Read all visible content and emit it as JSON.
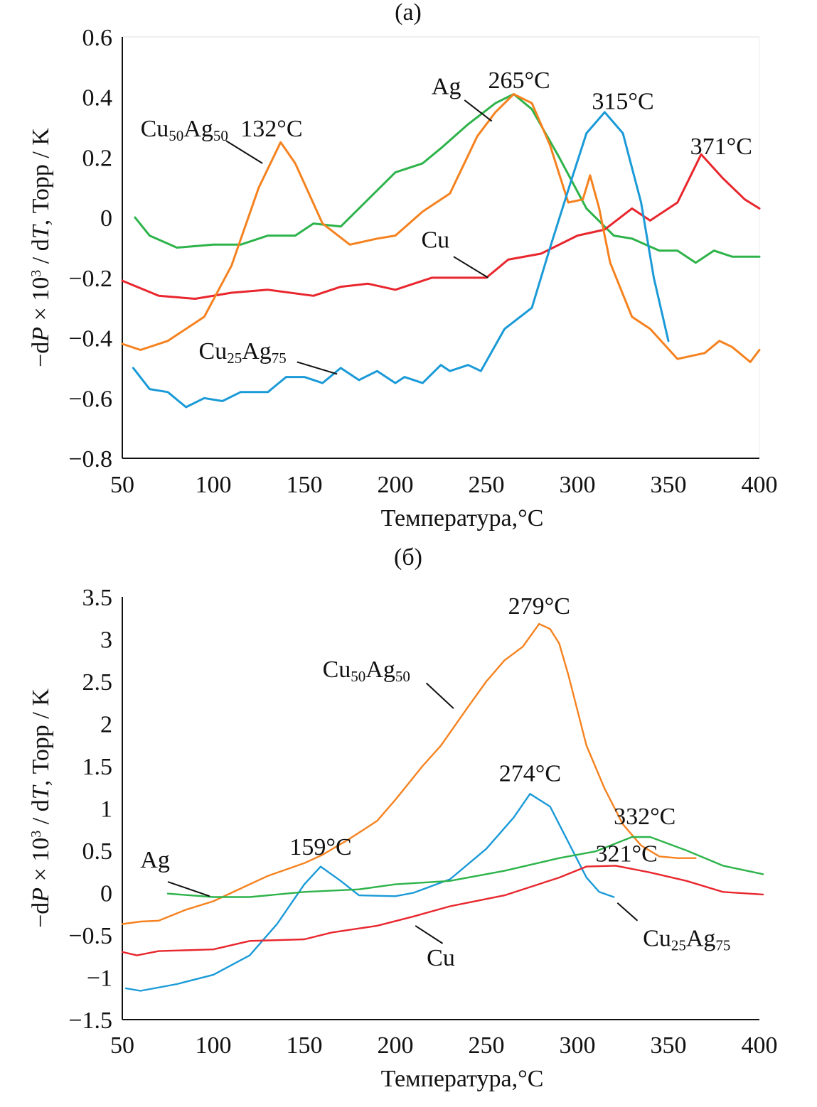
{
  "chart_data": [
    {
      "type": "line",
      "title": "(a)",
      "xlabel": "Температура,°C",
      "ylabel_parts": [
        "−d",
        "P",
        " × 10",
        "3",
        " / d",
        "T",
        ", Торр / K"
      ],
      "xlim": [
        50,
        400
      ],
      "ylim": [
        -0.8,
        0.6
      ],
      "xticks": [
        50,
        100,
        150,
        200,
        250,
        300,
        350,
        400
      ],
      "yticks": [
        0.6,
        0.4,
        0.2,
        0,
        -0.2,
        -0.4,
        -0.6,
        -0.8
      ],
      "ytick_labels": [
        "0.6",
        "0.4",
        "0.2",
        "0",
        "−0.2",
        "−0.4",
        "−0.6",
        "−0.8"
      ],
      "grid": false,
      "series": [
        {
          "name": "Ag",
          "color": "#2db34a",
          "x": [
            57,
            65,
            80,
            100,
            115,
            130,
            145,
            155,
            170,
            185,
            200,
            215,
            225,
            240,
            255,
            265,
            275,
            290,
            305,
            320,
            330,
            345,
            355,
            365,
            375,
            385,
            400
          ],
          "y": [
            0,
            -0.06,
            -0.1,
            -0.09,
            -0.09,
            -0.06,
            -0.06,
            -0.02,
            -0.03,
            0.06,
            0.15,
            0.18,
            0.23,
            0.31,
            0.38,
            0.41,
            0.36,
            0.2,
            0.03,
            -0.06,
            -0.07,
            -0.11,
            -0.11,
            -0.15,
            -0.11,
            -0.13,
            -0.13
          ]
        },
        {
          "name": "Cu",
          "color": "#e8262d",
          "x": [
            50,
            70,
            90,
            110,
            130,
            155,
            170,
            185,
            200,
            220,
            250,
            262,
            280,
            300,
            315,
            330,
            340,
            355,
            368,
            380,
            392,
            400
          ],
          "y": [
            -0.21,
            -0.26,
            -0.27,
            -0.25,
            -0.24,
            -0.26,
            -0.23,
            -0.22,
            -0.24,
            -0.2,
            -0.2,
            -0.14,
            -0.12,
            -0.06,
            -0.04,
            0.03,
            -0.01,
            0.05,
            0.21,
            0.13,
            0.06,
            0.03
          ]
        },
        {
          "name": "Cu50Ag50",
          "color": "#f5821f",
          "x": [
            50,
            60,
            75,
            95,
            110,
            125,
            137,
            145,
            160,
            175,
            190,
            200,
            215,
            230,
            245,
            255,
            265,
            275,
            285,
            295,
            303,
            307,
            312,
            318,
            330,
            340,
            355,
            370,
            378,
            385,
            395,
            400
          ],
          "y": [
            -0.42,
            -0.44,
            -0.41,
            -0.33,
            -0.16,
            0.1,
            0.25,
            0.18,
            -0.02,
            -0.09,
            -0.07,
            -0.06,
            0.02,
            0.08,
            0.27,
            0.35,
            0.41,
            0.38,
            0.24,
            0.05,
            0.06,
            0.14,
            0.03,
            -0.15,
            -0.33,
            -0.37,
            -0.47,
            -0.45,
            -0.41,
            -0.43,
            -0.48,
            -0.44
          ]
        },
        {
          "name": "Cu25Ag75",
          "color": "#1a9ad7",
          "x": [
            56,
            65,
            75,
            85,
            95,
            105,
            115,
            130,
            140,
            150,
            160,
            170,
            180,
            190,
            200,
            205,
            215,
            225,
            230,
            240,
            247,
            260,
            275,
            285,
            297,
            305,
            315,
            325,
            335,
            342,
            350
          ],
          "y": [
            -0.5,
            -0.57,
            -0.58,
            -0.63,
            -0.6,
            -0.61,
            -0.58,
            -0.58,
            -0.53,
            -0.53,
            -0.55,
            -0.5,
            -0.54,
            -0.51,
            -0.55,
            -0.53,
            -0.55,
            -0.49,
            -0.51,
            -0.49,
            -0.51,
            -0.37,
            -0.3,
            -0.1,
            0.13,
            0.28,
            0.35,
            0.28,
            0.05,
            -0.2,
            -0.41
          ]
        }
      ],
      "annotations": [
        {
          "text": "Cu",
          "sub1": "50",
          "text2": "Ag",
          "sub2": "50",
          "x": 60,
          "y": 0.27,
          "anchor": "start",
          "leader": [
            [
              107,
              0.255
            ],
            [
              127,
              0.18
            ]
          ]
        },
        {
          "text": "132°C",
          "x": 132,
          "y": 0.27,
          "anchor": "middle"
        },
        {
          "text": "Ag",
          "x": 228,
          "y": 0.41,
          "anchor": "middle",
          "leader": [
            [
              238,
              0.39
            ],
            [
              253,
              0.32
            ]
          ]
        },
        {
          "text": "265°C",
          "x": 268,
          "y": 0.43,
          "anchor": "middle"
        },
        {
          "text": "315°C",
          "x": 325,
          "y": 0.36,
          "anchor": "middle"
        },
        {
          "text": "371°C",
          "x": 379,
          "y": 0.21,
          "anchor": "middle"
        },
        {
          "text": "Cu",
          "x": 222,
          "y": -0.1,
          "anchor": "middle",
          "leader": [
            [
              232,
              -0.13
            ],
            [
              251,
              -0.2
            ]
          ]
        },
        {
          "text": "Cu",
          "sub1": "25",
          "text2": "Ag",
          "sub2": "75",
          "x": 92,
          "y": -0.47,
          "anchor": "start",
          "leader": [
            [
              146,
              -0.48
            ],
            [
              168,
              -0.52
            ]
          ]
        }
      ]
    },
    {
      "type": "line",
      "title": "(б)",
      "xlabel": "Температура,°C",
      "ylabel_parts": [
        "−d",
        "P",
        " × 10",
        "3",
        " / d",
        "T",
        ", Торр / K"
      ],
      "xlim": [
        50,
        400
      ],
      "ylim": [
        -1.5,
        3.5
      ],
      "xticks": [
        50,
        100,
        150,
        200,
        250,
        300,
        350,
        400
      ],
      "yticks": [
        3.5,
        3,
        2.5,
        2,
        1.5,
        1,
        0.5,
        0,
        -0.5,
        -1,
        -1.5
      ],
      "ytick_labels": [
        "3.5",
        "3",
        "2.5",
        "2",
        "1.5",
        "1",
        "0.5",
        "0",
        "−0.5",
        "−1",
        "−1.5"
      ],
      "grid": false,
      "series": [
        {
          "name": "Cu50Ag50",
          "color": "#f5821f",
          "x": [
            50,
            60,
            70,
            85,
            100,
            115,
            130,
            150,
            160,
            175,
            190,
            200,
            215,
            225,
            240,
            250,
            260,
            270,
            279,
            285,
            290,
            295,
            305,
            315,
            325,
            335,
            345,
            355,
            365
          ],
          "y": [
            -0.37,
            -0.34,
            -0.33,
            -0.2,
            -0.1,
            0.05,
            0.2,
            0.35,
            0.45,
            0.64,
            0.85,
            1.1,
            1.5,
            1.74,
            2.2,
            2.5,
            2.75,
            2.91,
            3.18,
            3.12,
            2.95,
            2.58,
            1.74,
            1.23,
            0.81,
            0.56,
            0.43,
            0.41,
            0.41
          ]
        },
        {
          "name": "Cu25Ag75",
          "color": "#1a9ad7",
          "x": [
            52,
            60,
            80,
            100,
            120,
            135,
            150,
            159,
            170,
            180,
            200,
            210,
            230,
            250,
            265,
            274,
            285,
            295,
            305,
            312,
            320
          ],
          "y": [
            -1.13,
            -1.16,
            -1.08,
            -0.97,
            -0.74,
            -0.37,
            0.1,
            0.31,
            0.14,
            -0.03,
            -0.04,
            0,
            0.16,
            0.52,
            0.89,
            1.17,
            1.02,
            0.6,
            0.18,
            0.01,
            -0.05
          ]
        },
        {
          "name": "Ag",
          "color": "#2db34a",
          "x": [
            75,
            100,
            120,
            150,
            180,
            200,
            230,
            260,
            290,
            310,
            330,
            340,
            360,
            380,
            402
          ],
          "y": [
            -0.01,
            -0.05,
            -0.05,
            0.01,
            0.04,
            0.1,
            0.14,
            0.26,
            0.41,
            0.49,
            0.66,
            0.66,
            0.5,
            0.32,
            0.22
          ]
        },
        {
          "name": "Cu",
          "color": "#e8262d",
          "x": [
            50,
            58,
            70,
            100,
            120,
            150,
            165,
            190,
            210,
            230,
            260,
            290,
            305,
            321,
            340,
            360,
            380,
            402
          ],
          "y": [
            -0.7,
            -0.74,
            -0.69,
            -0.67,
            -0.57,
            -0.55,
            -0.47,
            -0.39,
            -0.28,
            -0.16,
            -0.03,
            0.18,
            0.31,
            0.32,
            0.24,
            0.14,
            0.01,
            -0.02
          ]
        }
      ],
      "annotations": [
        {
          "text": "279°C",
          "x": 279,
          "y": 3.3,
          "anchor": "middle"
        },
        {
          "text": "Cu",
          "sub1": "50",
          "text2": "Ag",
          "sub2": "50",
          "x": 160,
          "y": 2.55,
          "anchor": "start",
          "leader": [
            [
              217,
              2.48
            ],
            [
              232,
              2.18
            ]
          ]
        },
        {
          "text": "274°C",
          "x": 274,
          "y": 1.32,
          "anchor": "middle"
        },
        {
          "text": "332°C",
          "x": 337,
          "y": 0.81,
          "anchor": "middle"
        },
        {
          "text": "321°C",
          "x": 327,
          "y": 0.37,
          "anchor": "middle"
        },
        {
          "text": "159°C",
          "x": 159,
          "y": 0.45,
          "anchor": "middle"
        },
        {
          "text": "Ag",
          "x": 68,
          "y": 0.3,
          "anchor": "middle",
          "leader": [
            [
              75,
              0.13
            ],
            [
              98,
              -0.04
            ]
          ]
        },
        {
          "text": "Cu",
          "x": 225,
          "y": -0.86,
          "anchor": "middle",
          "leader": [
            [
              211,
              -0.39
            ],
            [
              226,
              -0.6
            ]
          ]
        },
        {
          "text": "Cu",
          "sub1": "25",
          "text2": "Ag",
          "sub2": "75",
          "x": 336,
          "y": -0.63,
          "anchor": "start",
          "leader": [
            [
              322,
              -0.12
            ],
            [
              333,
              -0.33
            ]
          ]
        }
      ]
    }
  ]
}
